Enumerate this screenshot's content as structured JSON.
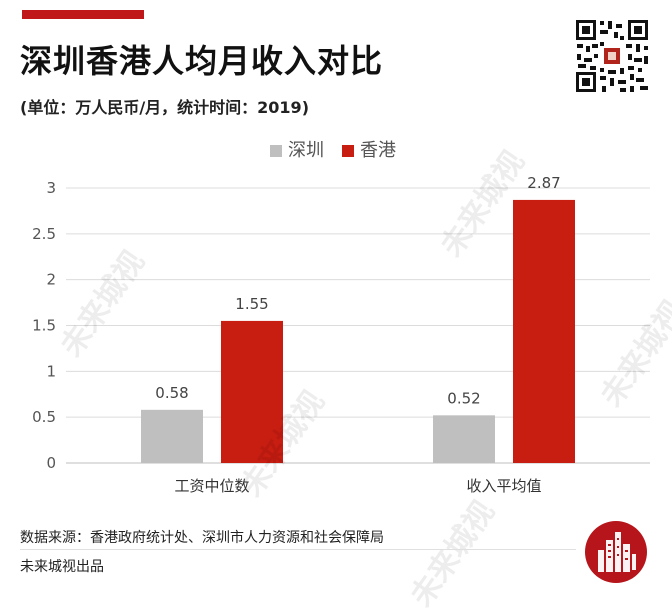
{
  "header": {
    "title": "深圳香港人均月收入对比",
    "subtitle": "(单位：万人民币/月，统计时间：2019)"
  },
  "footer": {
    "source": "数据来源：香港政府统计处、深圳市人力资源和社会保障局",
    "producer": "未来城视出品"
  },
  "watermark": {
    "text": "未来城视"
  },
  "colors": {
    "shenzhen": "#bfbfbf",
    "hongkong": "#c81d11",
    "accent": "#c0171b"
  },
  "chart_data": {
    "type": "bar",
    "categories": [
      "工资中位数",
      "收入平均值"
    ],
    "series": [
      {
        "name": "深圳",
        "values": [
          0.58,
          0.52
        ]
      },
      {
        "name": "香港",
        "values": [
          1.55,
          2.87
        ]
      }
    ],
    "ylim": [
      0,
      3
    ],
    "yticks": [
      "0",
      "0.5",
      "1",
      "1.5",
      "2",
      "2.5",
      "3"
    ],
    "data_labels": [
      [
        "0.58",
        "0.52"
      ],
      [
        "1.55",
        "2.87"
      ]
    ],
    "legend_position": "top-center",
    "grid": true
  }
}
